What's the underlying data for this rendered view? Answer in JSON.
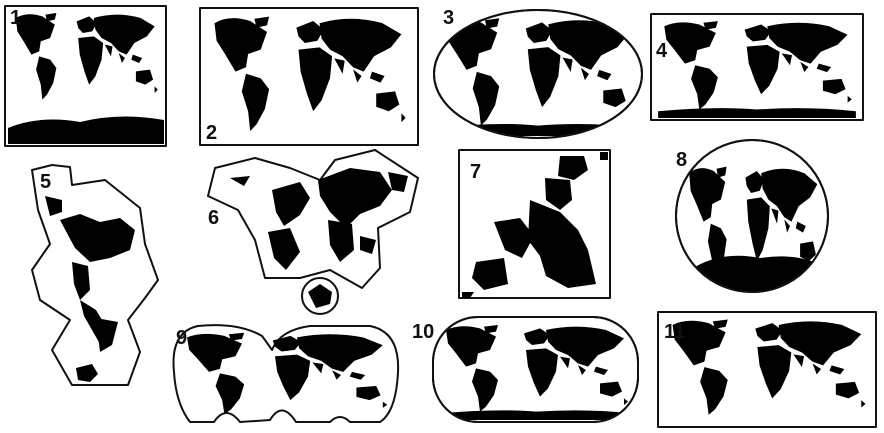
{
  "ink_color": "#000000",
  "paper_color": "#ffffff",
  "maps": [
    {
      "label": "1"
    },
    {
      "label": "2"
    },
    {
      "label": "3"
    },
    {
      "label": "4"
    },
    {
      "label": "5"
    },
    {
      "label": "6"
    },
    {
      "label": "7"
    },
    {
      "label": "8"
    },
    {
      "label": "9"
    },
    {
      "label": "10"
    },
    {
      "label": "11"
    }
  ]
}
